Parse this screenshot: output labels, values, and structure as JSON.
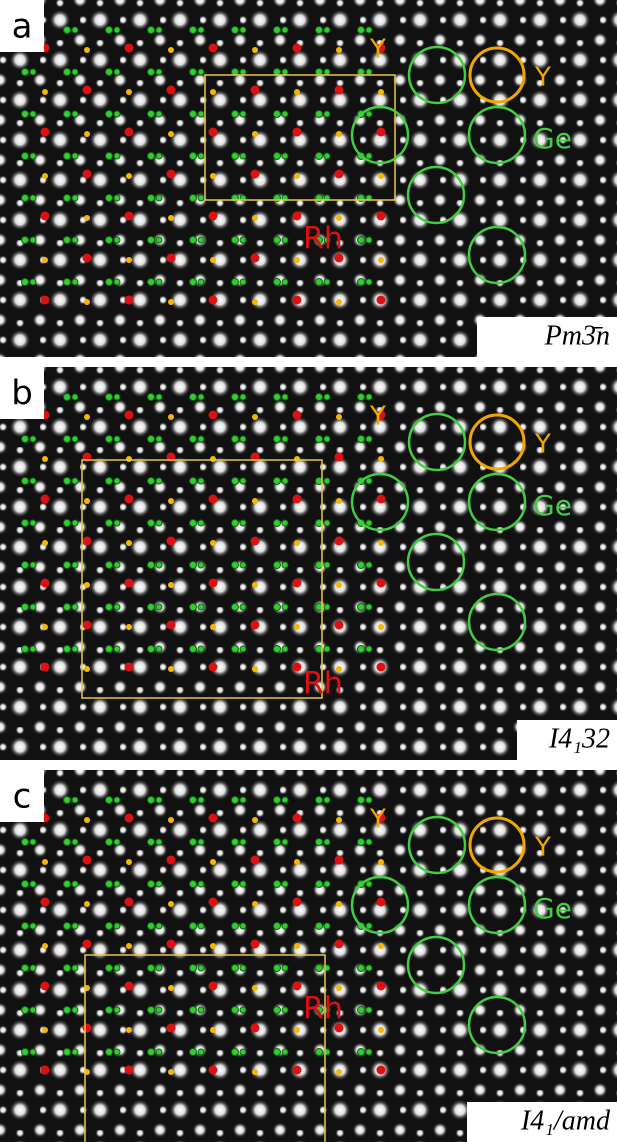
{
  "panels": [
    {
      "label": "a",
      "y_label_1": "Y",
      "y_label_2": "Y",
      "ge_label": "Ge",
      "rh_label": "Rh",
      "space_group": "Pm3̄n"
    },
    {
      "label": "b",
      "y_label_1": "Y",
      "y_label_2": "Y",
      "ge_label": "Ge",
      "rh_label": "Rh",
      "space_group": "I4₁32"
    },
    {
      "label": "c",
      "y_label_1": "Y",
      "y_label_2": "Y",
      "ge_label": "Ge",
      "rh_label": "Rh",
      "space_group": "I4₁/amd"
    }
  ]
}
